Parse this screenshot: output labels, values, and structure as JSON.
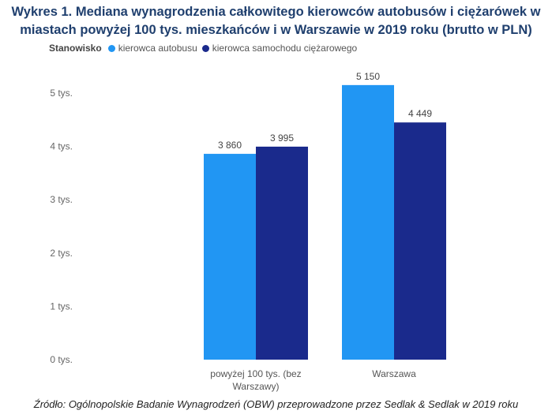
{
  "title_line1": "Wykres 1. Mediana wynagrodzenia całkowitego kierowców autobusów i ciężarówek w",
  "title_line2": "miastach powyżej 100 tys. mieszkańców i w Warszawie w 2019 roku (brutto w PLN)",
  "legend": {
    "title": "Stanowisko",
    "items": [
      {
        "label": "kierowca autobusu",
        "color": "#2196f3"
      },
      {
        "label": "kierowca samochodu ciężarowego",
        "color": "#1a2a8c"
      }
    ]
  },
  "source": "Źródło: Ogólnopolskie Badanie Wynagrodzeń (OBW) przeprowadzone przez Sedlak & Sedlak w 2019 roku",
  "chart_data": {
    "type": "bar",
    "title": "Wykres 1. Mediana wynagrodzenia całkowitego kierowców autobusów i ciężarówek w miastach powyżej 100 tys. mieszkańców i w Warszawie w 2019 roku (brutto w PLN)",
    "categories": [
      [
        "powyżej 100 tys. (bez",
        "Warszawy)"
      ],
      [
        "Warszawa"
      ]
    ],
    "series": [
      {
        "name": "kierowca autobusu",
        "values": [
          3860,
          5150
        ],
        "labels": [
          "3 860",
          "5 150"
        ],
        "color": "#2196f3"
      },
      {
        "name": "kierowca samochodu ciężarowego",
        "values": [
          3995,
          4449
        ],
        "labels": [
          "3 995",
          "4 449"
        ],
        "color": "#1a2a8c"
      }
    ],
    "yticks": [
      0,
      1000,
      2000,
      3000,
      4000,
      5000
    ],
    "ytick_labels": [
      "0 tys.",
      "1 tys.",
      "2 tys.",
      "3 tys.",
      "4 tys.",
      "5 tys."
    ],
    "ylim": [
      0,
      5000
    ],
    "grid": false,
    "legend_position": "top-left",
    "xlabel": "",
    "ylabel": ""
  }
}
